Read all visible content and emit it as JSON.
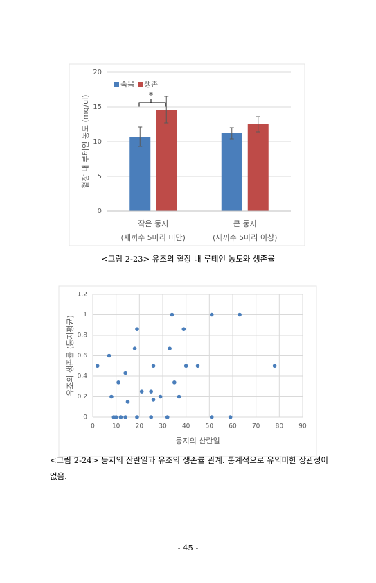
{
  "chart_data": [
    {
      "type": "bar",
      "ylabel": "혈장 내 루테인 농도 (mg/ul)",
      "categories": [
        [
          "작은 둥지",
          "(새끼수 5마리 미만)"
        ],
        [
          "큰 둥지",
          "(새끼수 5마리 이상)"
        ]
      ],
      "series": [
        {
          "name": "죽음",
          "color": "#4a7ebb",
          "values": [
            10.7,
            11.2
          ],
          "errors": [
            1.4,
            0.8
          ]
        },
        {
          "name": "생존",
          "color": "#be4b48",
          "values": [
            14.6,
            12.5
          ],
          "errors": [
            1.9,
            1.1
          ]
        }
      ],
      "ylim": [
        0,
        20
      ],
      "yticks": [
        0,
        5,
        10,
        15,
        20
      ],
      "grid": true,
      "legend": "top-left",
      "annotation": "*"
    },
    {
      "type": "scatter",
      "xlabel": "둥지의 산란일",
      "ylabel": "유조의 생존률 (둥지평균)",
      "color": "#4a7ebb",
      "x": [
        2,
        7,
        8,
        9,
        10,
        11,
        12,
        14,
        14,
        15,
        18,
        19,
        19,
        21,
        25,
        25,
        26,
        26,
        29,
        32,
        33,
        34,
        35,
        37,
        39,
        40,
        45,
        51,
        51,
        59,
        63,
        78
      ],
      "values": [
        0.5,
        0.6,
        0.2,
        0,
        0,
        0.34,
        0,
        0.43,
        0,
        0.15,
        0.67,
        0.86,
        0,
        0.25,
        0.25,
        0,
        0.17,
        0.5,
        0.2,
        0,
        0.67,
        1,
        0.34,
        0.2,
        0.86,
        0.5,
        0.5,
        1,
        0,
        0,
        1,
        0.5
      ],
      "xlim": [
        0,
        90
      ],
      "xticks": [
        0,
        10,
        20,
        30,
        40,
        50,
        60,
        70,
        80,
        90
      ],
      "ylim": [
        0,
        1.2
      ],
      "yticks": [
        0,
        0.2,
        0.4,
        0.6,
        0.8,
        1,
        1.2
      ],
      "grid": true
    }
  ],
  "captions": [
    "<그림 2-23> 유조의 혈장 내 루테인 농도와 생존율",
    "<그림 2-24> 둥지의 산란일과 유조의 생존률 관계. 통계적으로 유의미한 상관성이 없음."
  ],
  "page_number": "- 45 -"
}
